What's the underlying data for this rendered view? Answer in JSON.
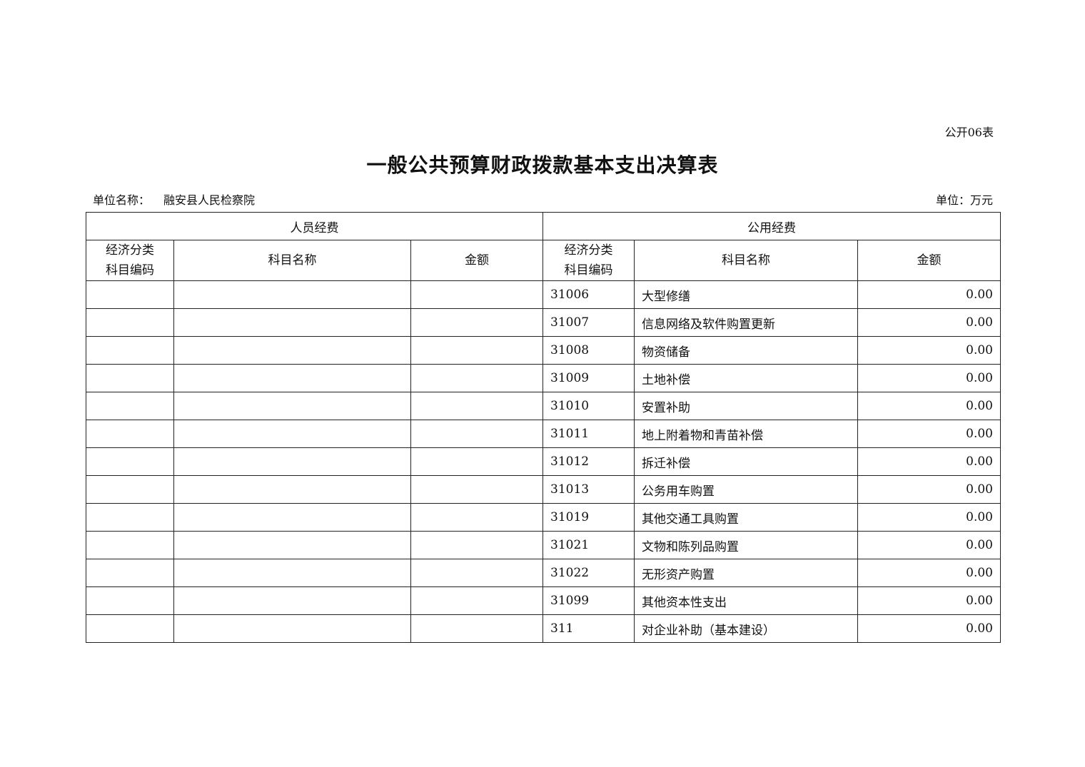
{
  "form_no": "公开06表",
  "title": "一般公共预算财政拨款基本支出决算表",
  "unit_name_label": "单位名称：",
  "unit_name": "融安县人民检察院",
  "unit_label": "单位：万元",
  "table": {
    "group_headers": [
      "人员经费",
      "公用经费"
    ],
    "column_headers": {
      "code_line1": "经济分类",
      "code_line2": "科目编码",
      "name": "科目名称",
      "amount": "金额"
    },
    "personnel_rows": [],
    "public_rows": [
      {
        "code": "31006",
        "name": "大型修缮",
        "amount": "0.00"
      },
      {
        "code": "31007",
        "name": "信息网络及软件购置更新",
        "amount": "0.00"
      },
      {
        "code": "31008",
        "name": "物资储备",
        "amount": "0.00"
      },
      {
        "code": "31009",
        "name": "土地补偿",
        "amount": "0.00"
      },
      {
        "code": "31010",
        "name": "安置补助",
        "amount": "0.00"
      },
      {
        "code": "31011",
        "name": "地上附着物和青苗补偿",
        "amount": "0.00"
      },
      {
        "code": "31012",
        "name": "拆迁补偿",
        "amount": "0.00"
      },
      {
        "code": "31013",
        "name": "公务用车购置",
        "amount": "0.00"
      },
      {
        "code": "31019",
        "name": "其他交通工具购置",
        "amount": "0.00"
      },
      {
        "code": "31021",
        "name": "文物和陈列品购置",
        "amount": "0.00"
      },
      {
        "code": "31022",
        "name": "无形资产购置",
        "amount": "0.00"
      },
      {
        "code": "31099",
        "name": "其他资本性支出",
        "amount": "0.00"
      },
      {
        "code": "311",
        "name": "对企业补助（基本建设）",
        "amount": "0.00"
      }
    ]
  }
}
